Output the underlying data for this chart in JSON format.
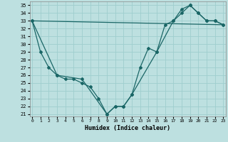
{
  "xlabel": "Humidex (Indice chaleur)",
  "bg_color": "#bde0e0",
  "grid_color": "#9ecece",
  "line_color": "#1a6666",
  "xlim": [
    -0.3,
    23.3
  ],
  "ylim": [
    20.7,
    35.5
  ],
  "xticks": [
    0,
    1,
    2,
    3,
    4,
    5,
    6,
    7,
    8,
    9,
    10,
    11,
    12,
    13,
    14,
    15,
    16,
    17,
    18,
    19,
    20,
    21,
    22,
    23
  ],
  "yticks": [
    21,
    22,
    23,
    24,
    25,
    26,
    27,
    28,
    29,
    30,
    31,
    32,
    33,
    34,
    35
  ],
  "series_v_x": [
    0,
    1,
    2,
    3,
    4,
    5,
    6,
    7,
    8,
    9,
    10,
    11,
    12,
    13,
    14,
    15,
    16,
    17,
    18,
    19,
    20,
    21,
    22,
    23
  ],
  "series_v_y": [
    33,
    29,
    27,
    26,
    25.5,
    25.5,
    25,
    24.5,
    23,
    21,
    22,
    22,
    23.5,
    27,
    29.5,
    29,
    32.5,
    33,
    34.5,
    35,
    34,
    33,
    33,
    32.5
  ],
  "series_poly_x": [
    0,
    3,
    6,
    9,
    10,
    11,
    12,
    15,
    17,
    18,
    19,
    20,
    21,
    22,
    23
  ],
  "series_poly_y": [
    33,
    26,
    25.5,
    21,
    22,
    22,
    23.5,
    29,
    33,
    34,
    35,
    34,
    33,
    33,
    32.5
  ],
  "series_line_x": [
    0,
    23
  ],
  "series_line_y": [
    33,
    32.5
  ]
}
